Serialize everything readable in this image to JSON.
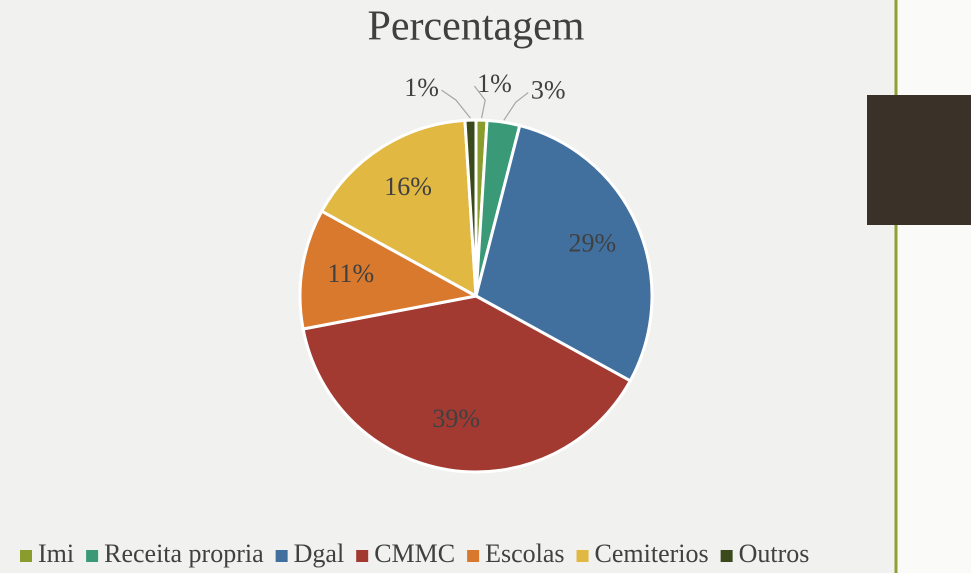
{
  "chart_data": {
    "type": "pie",
    "title": "Percentagem",
    "categories": [
      "Imi",
      "Receita propria",
      "Dgal",
      "CMMC",
      "Escolas",
      "Cemiterios",
      "Outros"
    ],
    "values": [
      1,
      3,
      29,
      39,
      11,
      16,
      1
    ],
    "value_labels": [
      "1%",
      "3%",
      "29%",
      "39%",
      "11%",
      "16%",
      "1%"
    ],
    "colors": [
      "#8a9c2c",
      "#3a9a78",
      "#41709f",
      "#a23a32",
      "#d9792e",
      "#e0b842",
      "#3b4a1a"
    ],
    "legend": "bottom"
  }
}
